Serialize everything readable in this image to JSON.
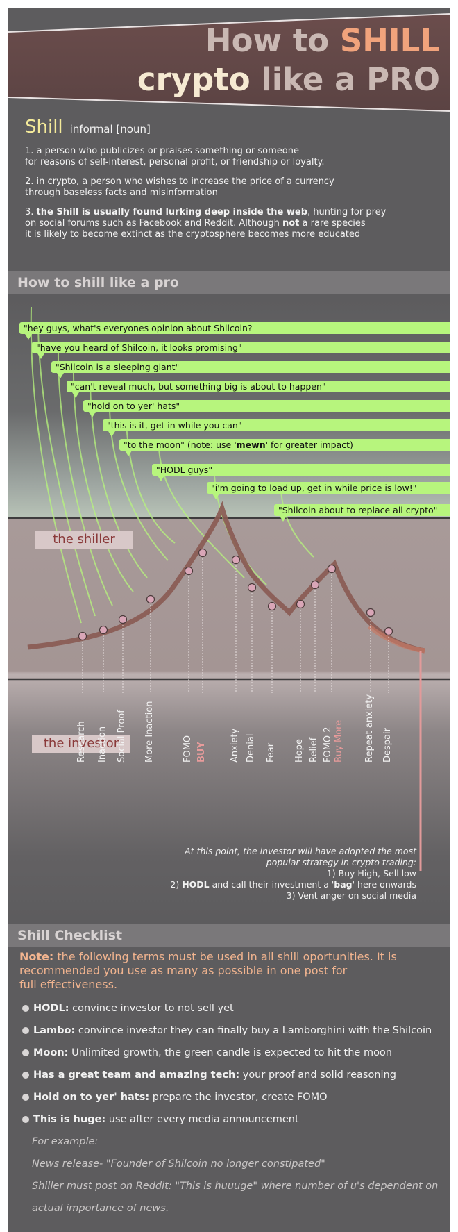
{
  "title": {
    "line1_a": "How to ",
    "line1_b": "SHILL",
    "line2_a": "crypto",
    "line2_b": " like a PRO"
  },
  "definition": {
    "word": "Shill",
    "pos": "informal [noun]",
    "def1_a": "1. a person who publicizes or praises something or someone",
    "def1_b": "for reasons of self-interest, personal profit, or friendship or loyalty.",
    "def2_a": "2. in crypto, a person who wishes to increase the price of a currency",
    "def2_b": "through baseless facts and misinformation",
    "def3_a": "3. ",
    "def3_bold": "the Shill is usually found lurking deep inside the web",
    "def3_b": ", hunting for prey",
    "def3_c": "on social forums such as Facebook and Reddit. Although ",
    "def3_not": "not",
    "def3_d": " a rare species",
    "def3_e": "it is likely to become extinct as the cryptosphere becomes more educated"
  },
  "section1": {
    "title": "How to shill like a pro"
  },
  "quotes": [
    "\"hey guys, what's everyones opinion about Shilcoin?",
    "\"have you heard of Shilcoin, it looks promising\"",
    "\"Shilcoin is a sleeping giant\"",
    "\"can't reveal much, but something big is about to happen\"",
    "\"hold on to yer' hats\"",
    "\"this is it, get in while you can\"",
    "\"HODL guys\"",
    "\"i'm going to load up, get in while price is low!\"",
    "\"Shilcoin about to replace all crypto\""
  ],
  "moon_quote": {
    "a": "\"to the moon\" (note: use '",
    "bold": "mewn",
    "b": "' for greater impact)"
  },
  "labels": {
    "shiller": "the shiller",
    "investor": "the investor"
  },
  "stages": [
    "Research",
    "Inaction",
    "Social Proof",
    "More Inaction",
    "FOMO",
    "BUY",
    "Anxiety",
    "Denial",
    "Fear",
    "Hope",
    "Relief",
    "FOMO 2",
    "Buy More",
    "Repeat anxiety",
    "Despair"
  ],
  "conclusion": {
    "l1": "At this point, the investor will have adopted the most",
    "l2": "popular strategy in crypto trading:",
    "l3": "1) Buy High, Sell low",
    "l4_a": "2) ",
    "l4_b": "HODL",
    "l4_c": " and call their investment a '",
    "l4_d": "bag",
    "l4_e": "' here onwards",
    "l5": "3) Vent anger on social media"
  },
  "section2": {
    "title": "Shill Checklist"
  },
  "note": {
    "label": "Note:",
    "l1": " the following terms must be used in all shill oportunities. It is",
    "l2": "recommended you use as many as possible in one post for",
    "l3": "full effectiveness."
  },
  "checklist": [
    {
      "term": "HODL:",
      "desc": " convince investor to not sell yet"
    },
    {
      "term": "Lambo:",
      "desc": " convince investor they can finally buy a Lamborghini with the Shilcoin"
    },
    {
      "term": "Moon:",
      "desc": " Unlimited growth, the green candle is expected to hit the moon"
    },
    {
      "term": "Has a great team and amazing tech:",
      "desc": " your proof and solid reasoning"
    },
    {
      "term": "Hold on to yer' hats:",
      "desc": " prepare the investor, create FOMO"
    },
    {
      "term": "This is huge:",
      "desc": " use after every media announcement"
    }
  ],
  "example": {
    "l1": "For example:",
    "l2": "News release-   \"Founder of Shilcoin no longer constipated\"",
    "l3": "Shiller must post on Reddit: \"This is huuuge\" where number of u's dependent on",
    "l4": "actual importance of news."
  },
  "colors": {
    "bubble": "#b7f57d",
    "curve": "#8a5a52",
    "title_accent": "#f1a37c",
    "shill_word": "#f4ea9a"
  }
}
